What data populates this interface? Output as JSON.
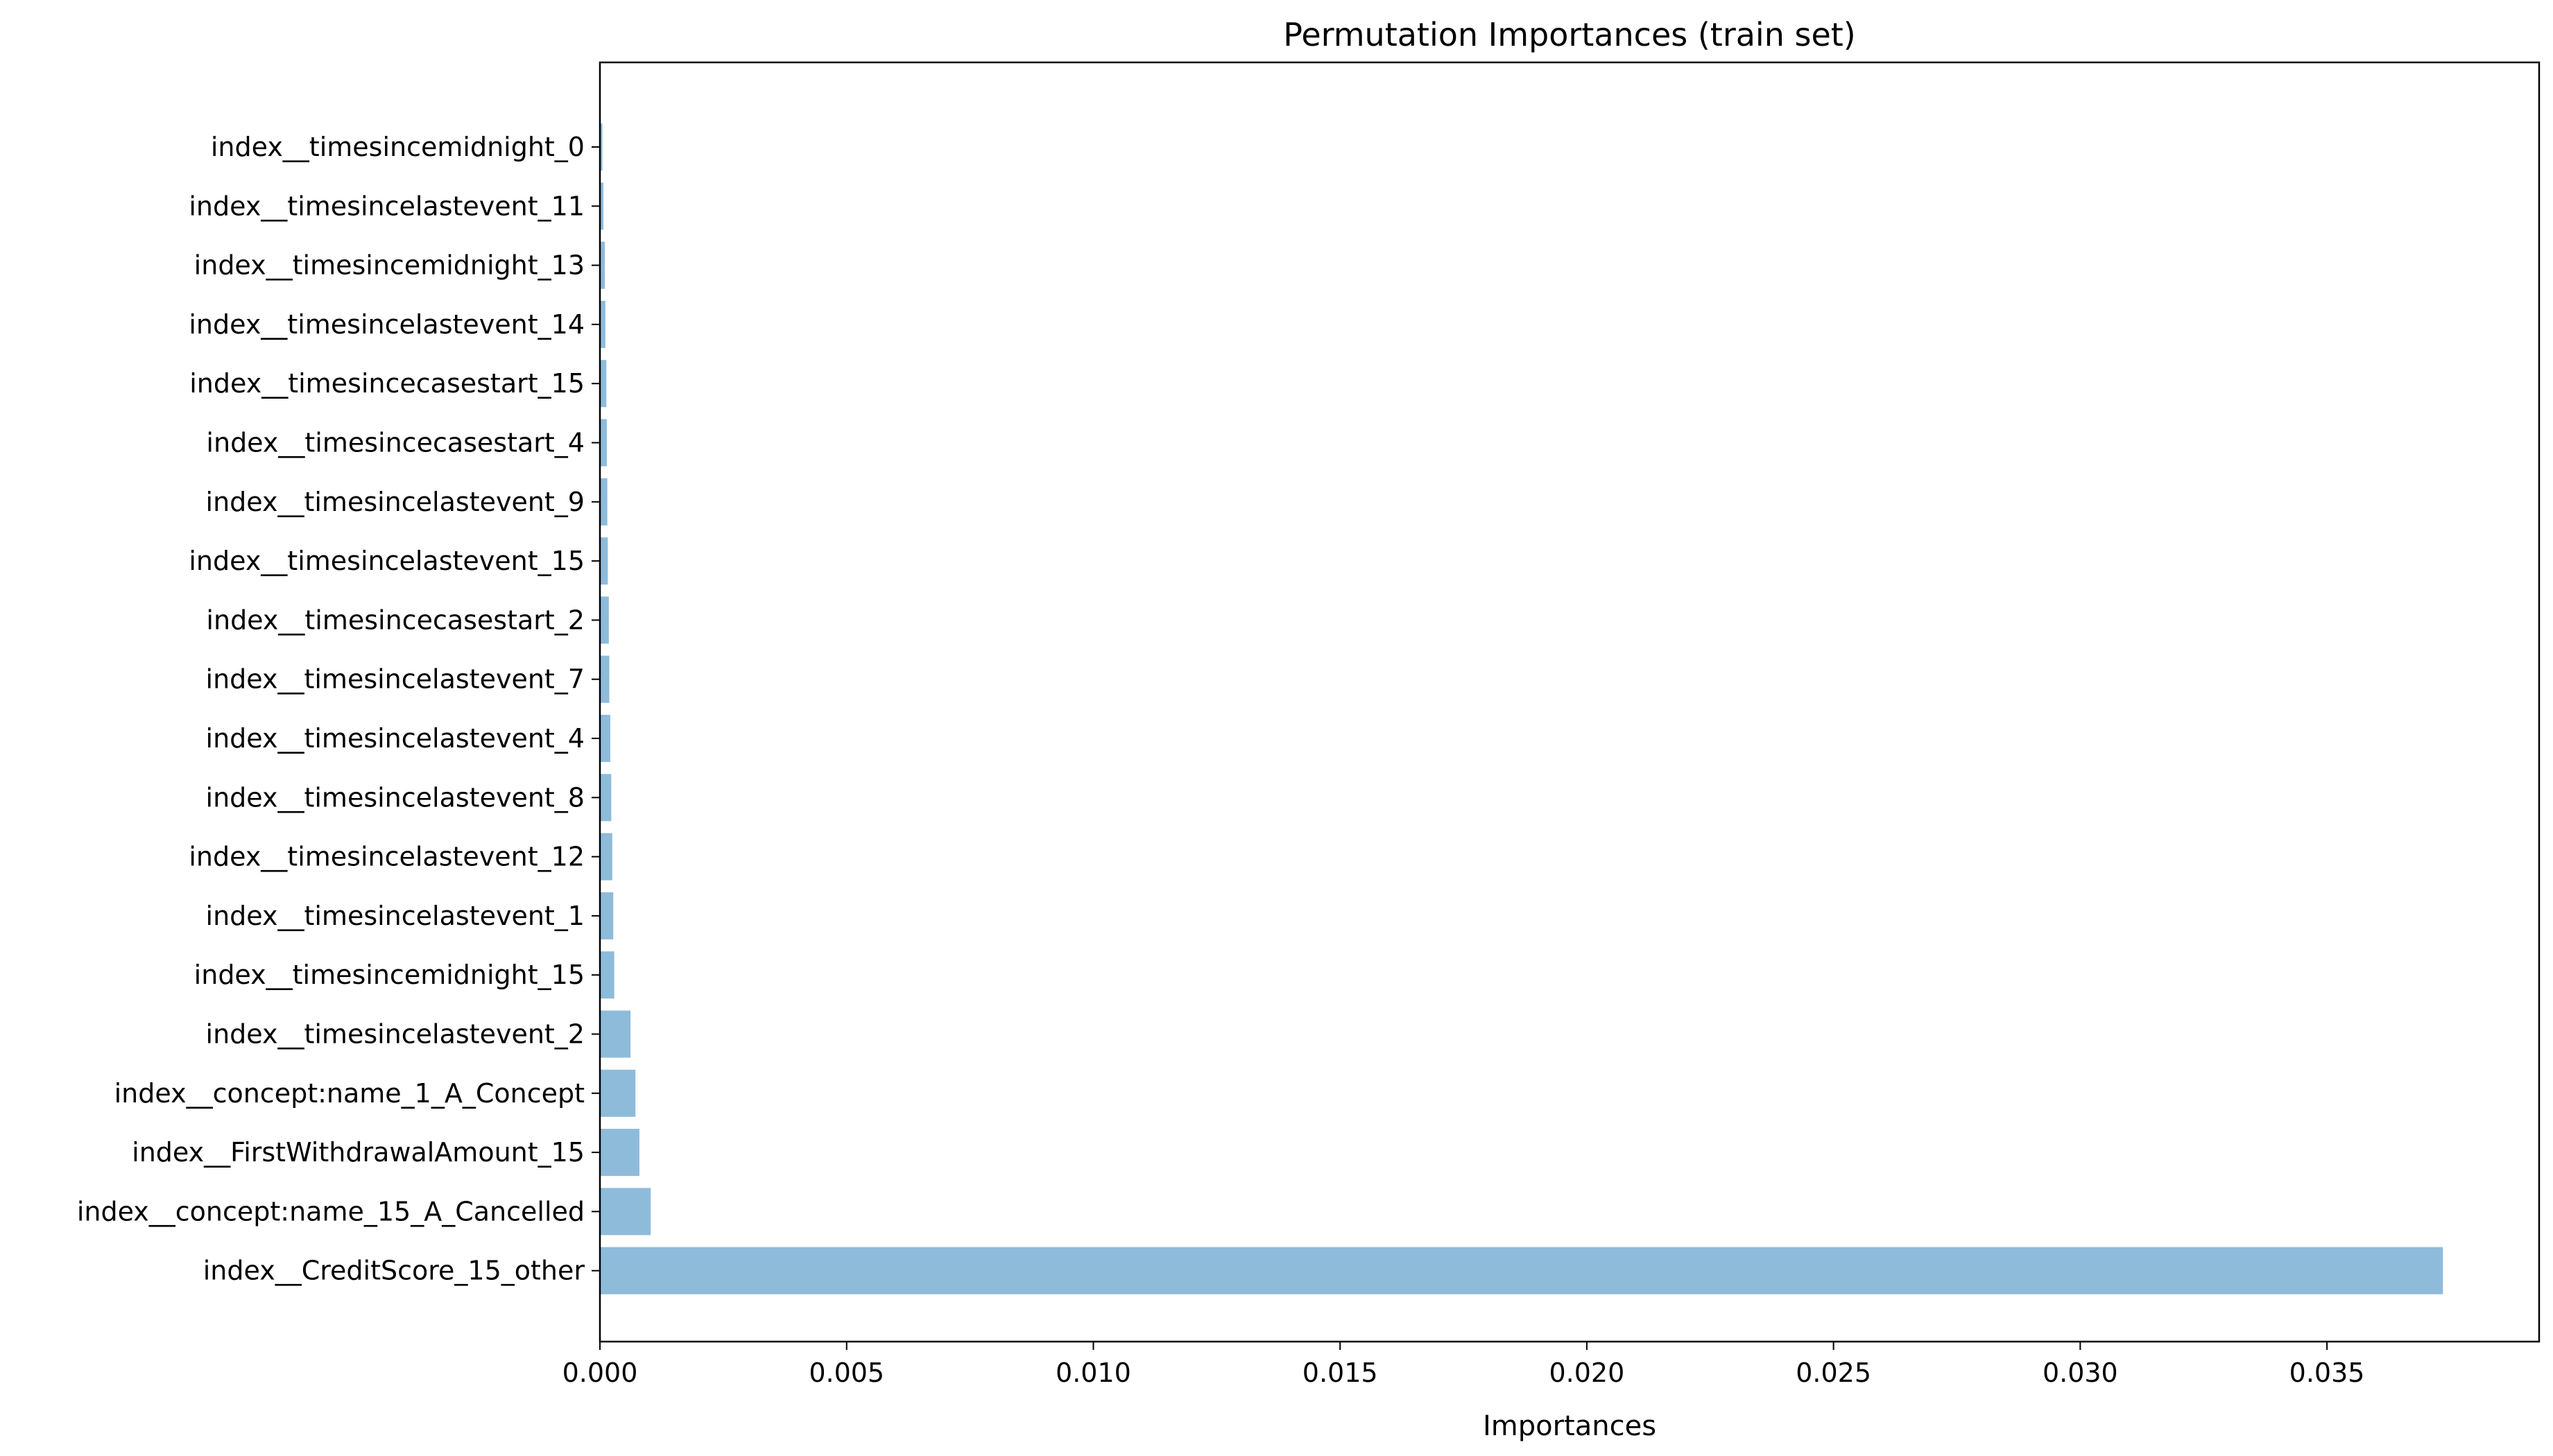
{
  "chart_data": {
    "type": "bar",
    "orientation": "horizontal",
    "title": "Permutation Importances (train set)",
    "xlabel": "Importances",
    "ylabel": "",
    "xlim": [
      0,
      0.0393
    ],
    "xticks": [
      0.0,
      0.005,
      0.01,
      0.015,
      0.02,
      0.025,
      0.03,
      0.035
    ],
    "xtick_labels": [
      "0.000",
      "0.005",
      "0.010",
      "0.015",
      "0.020",
      "0.025",
      "0.030",
      "0.035"
    ],
    "grid": false,
    "bar_color": "#8fbbdb",
    "categories": [
      "index__timesincemidnight_0",
      "index__timesincelastevent_11",
      "index__timesincemidnight_13",
      "index__timesincelastevent_14",
      "index__timesincecasestart_15",
      "index__timesincecasestart_4",
      "index__timesincelastevent_9",
      "index__timesincelastevent_15",
      "index__timesincecasestart_2",
      "index__timesincelastevent_7",
      "index__timesincelastevent_4",
      "index__timesincelastevent_8",
      "index__timesincelastevent_12",
      "index__timesincelastevent_1",
      "index__timesincemidnight_15",
      "index__timesincelastevent_2",
      "index__concept:name_1_A_Concept",
      "index__FirstWithdrawalAmount_15",
      "index__concept:name_15_A_Cancelled",
      "index__CreditScore_15_other"
    ],
    "values": [
      5e-05,
      7e-05,
      0.0001,
      0.00011,
      0.00013,
      0.00014,
      0.00015,
      0.00016,
      0.00018,
      0.00019,
      0.00021,
      0.00023,
      0.00025,
      0.00027,
      0.00029,
      0.00062,
      0.00072,
      0.0008,
      0.00103,
      0.03735
    ]
  }
}
